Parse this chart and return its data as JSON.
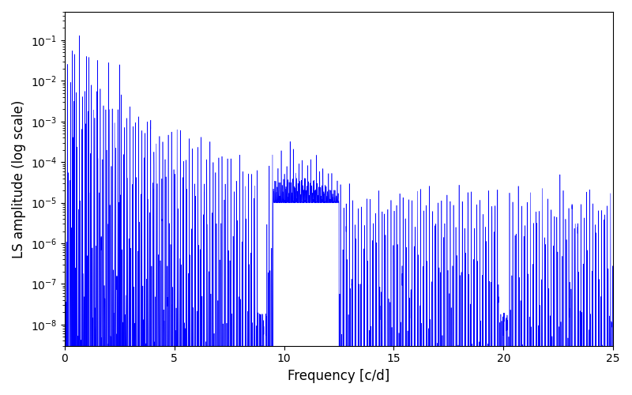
{
  "xlabel": "Frequency [c/d]",
  "ylabel": "LS amplitude (log scale)",
  "xlim": [
    0,
    25
  ],
  "ylim": [
    3e-09,
    0.5
  ],
  "line_color": "#0000ff",
  "line_width": 0.4,
  "figsize": [
    8.0,
    5.0
  ],
  "dpi": 100,
  "yscale": "log",
  "freq_max": 25.0,
  "n_points": 15000,
  "seed": 12345
}
